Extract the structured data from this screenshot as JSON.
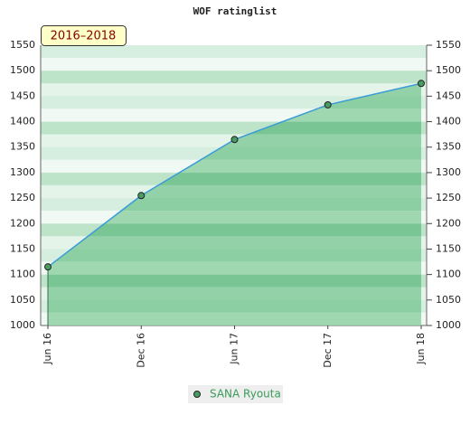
{
  "chart_data": {
    "type": "area",
    "title": "WOF ratinglist",
    "annotation": "2016–2018",
    "categories": [
      "Jun 16",
      "Dec 16",
      "Jun 17",
      "Dec 17",
      "Jun 18"
    ],
    "series": [
      {
        "name": "SANA Ryouta",
        "color": "#3a9bd9",
        "values": [
          1115,
          1255,
          1365,
          1433,
          1475
        ]
      }
    ],
    "ylim": [
      1000,
      1550
    ],
    "yticks": [
      1000,
      1050,
      1100,
      1150,
      1200,
      1250,
      1300,
      1350,
      1400,
      1450,
      1500,
      1550
    ]
  }
}
